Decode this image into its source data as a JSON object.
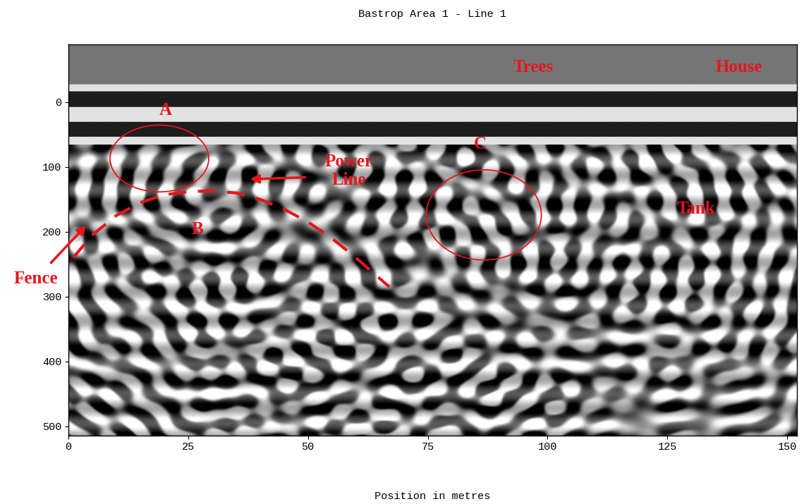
{
  "chart_data": {
    "type": "radargram",
    "title": "Bastrop Area 1 - Line 1",
    "x_label": "Position in metres",
    "xlim": [
      0,
      152
    ],
    "xticks": [
      0,
      25,
      50,
      75,
      100,
      125,
      150
    ],
    "ylim": [
      514,
      -89
    ],
    "yticks": [
      0,
      100,
      200,
      300,
      400,
      500
    ],
    "color": "#e8141b",
    "labels": [
      {
        "text": "A",
        "x": 20.3,
        "y": 13
      },
      {
        "text": "Trees",
        "x": 97,
        "y": -54
      },
      {
        "text": "House",
        "x": 140,
        "y": -54
      },
      {
        "text": "Power\nLine",
        "x": 58.5,
        "y": 106
      },
      {
        "text": "C",
        "x": 86,
        "y": 65
      },
      {
        "text": "B",
        "x": 27,
        "y": 196
      },
      {
        "text": "Tank",
        "x": 131,
        "y": 165
      },
      {
        "text": "Fence",
        "x": -6.8,
        "y": 272
      }
    ],
    "ellipses": [
      {
        "x": 19,
        "y": 87,
        "width": 20.6,
        "height": 103
      },
      {
        "x": 86.7,
        "y": 174,
        "width": 24,
        "height": 139
      }
    ],
    "arrows": [
      {
        "from": [
          49.8,
          116
        ],
        "to": [
          37.5,
          119
        ]
      },
      {
        "from": [
          -3.9,
          250
        ],
        "to": [
          4,
          188
        ]
      }
    ],
    "dashed_curve": {
      "line_style": "dashed",
      "x": [
        1,
        5,
        10,
        15,
        20,
        25,
        30,
        35,
        40,
        45,
        50,
        55,
        60,
        67
      ],
      "y": [
        240,
        205,
        175,
        155,
        143,
        138,
        137,
        140,
        150,
        165,
        185,
        210,
        240,
        285
      ]
    }
  }
}
